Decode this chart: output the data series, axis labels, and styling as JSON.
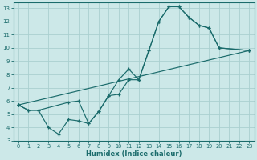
{
  "xlabel": "Humidex (Indice chaleur)",
  "bg_color": "#cce8e8",
  "grid_color": "#aad0d0",
  "line_color": "#1a6b6b",
  "xlim": [
    -0.5,
    23.5
  ],
  "ylim": [
    3,
    13.4
  ],
  "xticks": [
    0,
    1,
    2,
    3,
    4,
    5,
    6,
    7,
    8,
    9,
    10,
    11,
    12,
    13,
    14,
    15,
    16,
    17,
    18,
    19,
    20,
    21,
    22,
    23
  ],
  "yticks": [
    3,
    4,
    5,
    6,
    7,
    8,
    9,
    10,
    11,
    12,
    13
  ],
  "line1_x": [
    0,
    1,
    2,
    3,
    4,
    5,
    6,
    7,
    8,
    9,
    10,
    11,
    12,
    13,
    14,
    15,
    16,
    17,
    18,
    19,
    20,
    23
  ],
  "line1_y": [
    5.7,
    5.3,
    5.3,
    4.0,
    3.5,
    4.6,
    4.5,
    4.3,
    5.2,
    6.4,
    6.5,
    7.6,
    7.6,
    9.8,
    12.0,
    13.1,
    13.1,
    12.3,
    11.7,
    11.5,
    10.0,
    9.8
  ],
  "line2_x": [
    0,
    1,
    2,
    5,
    6,
    7,
    8,
    9,
    10,
    11,
    12,
    13,
    14,
    15,
    16,
    17,
    18,
    19,
    20,
    23
  ],
  "line2_y": [
    5.7,
    5.3,
    5.3,
    5.9,
    6.0,
    4.3,
    5.2,
    6.4,
    7.6,
    8.4,
    7.6,
    9.8,
    12.0,
    13.1,
    13.1,
    12.3,
    11.7,
    11.5,
    10.0,
    9.8
  ],
  "line3_x": [
    0,
    23
  ],
  "line3_y": [
    5.7,
    9.8
  ]
}
